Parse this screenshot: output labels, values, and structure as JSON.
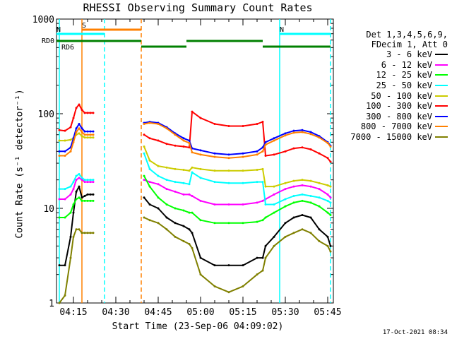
{
  "chart_data": {
    "type": "line",
    "title": "RHESSI Observing Summary Count Rates",
    "xlabel": "Start Time (23-Sep-06 04:09:02)",
    "ylabel": "Count Rate (s⁻¹ detector⁻¹)",
    "y_scale": "log",
    "ylim": [
      1,
      1000
    ],
    "yticks": [
      {
        "value": 1,
        "label": "1"
      },
      {
        "value": 10,
        "label": "10"
      },
      {
        "value": 100,
        "label": "100"
      },
      {
        "value": 1000,
        "label": "1000"
      }
    ],
    "xlim": [
      "04:09",
      "05:47"
    ],
    "xticks": [
      "04:15",
      "04:30",
      "04:45",
      "05:00",
      "05:15",
      "05:30",
      "05:45"
    ],
    "legend": {
      "position": "right",
      "header": [
        "Det 1,3,4,5,6,9,",
        "FDecim 1, Att 0"
      ]
    },
    "gaps": [
      [
        "04:22",
        "04:39"
      ]
    ],
    "x": [
      "04:10",
      "04:12",
      "04:14",
      "04:15",
      "04:16",
      "04:17",
      "04:18",
      "04:19",
      "04:20",
      "04:21",
      "04:22",
      "04:39",
      "04:40",
      "04:42",
      "04:45",
      "04:48",
      "04:51",
      "04:54",
      "04:56",
      "04:57",
      "05:00",
      "05:05",
      "05:10",
      "05:15",
      "05:20",
      "05:22",
      "05:23",
      "05:26",
      "05:30",
      "05:33",
      "05:36",
      "05:39",
      "05:42",
      "05:45",
      "05:46"
    ],
    "series": [
      {
        "name": "3 - 6 keV",
        "color": "#000000",
        "values": [
          2.5,
          2.5,
          5.0,
          9.0,
          15.0,
          17.0,
          13.0,
          13.5,
          14.0,
          14.0,
          14.0,
          null,
          13.0,
          11.0,
          10.0,
          8.0,
          7.0,
          6.5,
          6.0,
          5.5,
          3.0,
          2.5,
          2.5,
          2.5,
          3.0,
          3.0,
          4.0,
          5.0,
          7.0,
          8.0,
          8.5,
          8.0,
          6.0,
          5.0,
          4.0
        ]
      },
      {
        "name": "6 - 12 keV",
        "color": "#ff00ff",
        "values": [
          12.5,
          12.5,
          14.0,
          16.0,
          20.0,
          21.0,
          20.0,
          19.0,
          19.0,
          19.0,
          19.0,
          null,
          20.0,
          19.0,
          18.0,
          16.0,
          15.0,
          14.0,
          14.0,
          13.5,
          12.0,
          11.0,
          11.0,
          11.0,
          11.5,
          12.0,
          12.5,
          14.0,
          16.0,
          17.0,
          17.5,
          17.0,
          16.0,
          14.0,
          13.0
        ]
      },
      {
        "name": "12 - 25 keV",
        "color": "#00ff00",
        "values": [
          8.0,
          8.0,
          9.0,
          11.0,
          12.5,
          13.0,
          12.0,
          12.0,
          12.0,
          12.0,
          12.0,
          null,
          22.0,
          17.0,
          13.0,
          11.0,
          10.0,
          9.5,
          9.0,
          9.0,
          7.5,
          7.0,
          7.0,
          7.0,
          7.2,
          7.5,
          8.0,
          9.0,
          10.5,
          11.5,
          12.0,
          11.5,
          10.5,
          9.0,
          8.5
        ]
      },
      {
        "name": "25 - 50 keV",
        "color": "#00ffff",
        "values": [
          16.0,
          16.0,
          17.0,
          19.0,
          22.0,
          23.0,
          21.0,
          20.0,
          20.0,
          20.0,
          20.0,
          null,
          38.0,
          26.0,
          22.0,
          20.0,
          19.0,
          18.5,
          18.0,
          24.0,
          21.0,
          19.0,
          18.5,
          18.5,
          19.0,
          19.0,
          11.0,
          11.0,
          12.5,
          13.5,
          14.0,
          13.5,
          13.0,
          12.0,
          11.5
        ]
      },
      {
        "name": "50 - 100 keV",
        "color": "#cccc00",
        "values": [
          52.0,
          52.0,
          53.0,
          55.0,
          60.0,
          62.0,
          58.0,
          56.0,
          56.0,
          56.0,
          56.0,
          null,
          45.0,
          32.0,
          28.0,
          27.0,
          26.0,
          25.5,
          25.0,
          27.0,
          26.0,
          25.0,
          25.0,
          25.0,
          25.5,
          26.0,
          17.0,
          17.0,
          18.5,
          19.5,
          20.0,
          19.5,
          18.5,
          17.5,
          17.0
        ]
      },
      {
        "name": "100 - 300 keV",
        "color": "#ff0000",
        "values": [
          67.0,
          66.0,
          72.0,
          90.0,
          115.0,
          125.0,
          110.0,
          102.0,
          102.0,
          102.0,
          102.0,
          null,
          60.0,
          55.0,
          52.0,
          48.0,
          46.0,
          45.0,
          44.0,
          105.0,
          90.0,
          78.0,
          74.0,
          74.0,
          78.0,
          82.0,
          36.0,
          37.0,
          40.0,
          43.0,
          44.0,
          42.0,
          38.0,
          34.0,
          31.0
        ]
      },
      {
        "name": "300 - 800 keV",
        "color": "#0000ff",
        "values": [
          40.0,
          40.0,
          44.0,
          55.0,
          70.0,
          78.0,
          70.0,
          65.0,
          65.0,
          65.0,
          65.0,
          null,
          80.0,
          82.0,
          80.0,
          72.0,
          62.0,
          55.0,
          52.0,
          43.0,
          41.0,
          38.0,
          37.0,
          38.0,
          40.0,
          44.0,
          50.0,
          55.0,
          62.0,
          66.0,
          67.0,
          64.0,
          58.0,
          50.0,
          46.0
        ]
      },
      {
        "name": "800 - 7000 keV",
        "color": "#ff8000",
        "values": [
          36.0,
          36.0,
          40.0,
          50.0,
          64.0,
          70.0,
          64.0,
          60.0,
          60.0,
          60.0,
          60.0,
          null,
          78.0,
          80.0,
          78.0,
          70.0,
          60.0,
          52.0,
          49.0,
          39.0,
          37.0,
          35.0,
          34.0,
          35.0,
          37.0,
          40.0,
          47.0,
          52.0,
          59.0,
          63.0,
          64.0,
          61.0,
          56.0,
          49.0,
          45.0
        ]
      },
      {
        "name": "7000 - 15000 keV",
        "color": "#808000",
        "values": [
          1.0,
          1.2,
          3.0,
          5.0,
          6.0,
          6.0,
          5.5,
          5.5,
          5.5,
          5.5,
          5.5,
          null,
          8.0,
          7.5,
          7.0,
          6.0,
          5.0,
          4.5,
          4.2,
          3.8,
          2.0,
          1.5,
          1.3,
          1.5,
          2.0,
          2.2,
          3.0,
          4.0,
          5.0,
          5.5,
          6.0,
          5.5,
          4.5,
          4.0,
          3.5
        ]
      }
    ],
    "flags": [
      {
        "label": "S",
        "color": "#ff8000",
        "start": "04:18",
        "end": "04:39"
      },
      {
        "label": "N",
        "color": "#00ffff",
        "start": "04:09",
        "end": "04:26"
      },
      {
        "label": "N",
        "color": "#00ffff",
        "start": "05:28",
        "end": "05:46"
      },
      {
        "label": "RD0",
        "color": "#008000",
        "segments": [
          [
            "04:09",
            "04:39"
          ],
          [
            "04:39",
            "04:55"
          ],
          [
            "04:55",
            "05:22"
          ],
          [
            "05:22",
            "05:46"
          ]
        ],
        "levels": [
          "upper",
          "lower",
          "upper",
          "lower"
        ]
      },
      {
        "label": "RD6",
        "color": "#008000"
      }
    ],
    "vlines": [
      {
        "at": "04:10",
        "color": "#00ffff",
        "style": "solid"
      },
      {
        "at": "04:18",
        "color": "#ff8000",
        "style": "solid"
      },
      {
        "at": "04:26",
        "color": "#00ffff",
        "style": "dashed"
      },
      {
        "at": "04:39",
        "color": "#ff8000",
        "style": "dashed"
      },
      {
        "at": "05:28",
        "color": "#00ffff",
        "style": "solid"
      },
      {
        "at": "05:46",
        "color": "#00ffff",
        "style": "dashed"
      }
    ]
  },
  "timestamp": "17-Oct-2021 08:34"
}
